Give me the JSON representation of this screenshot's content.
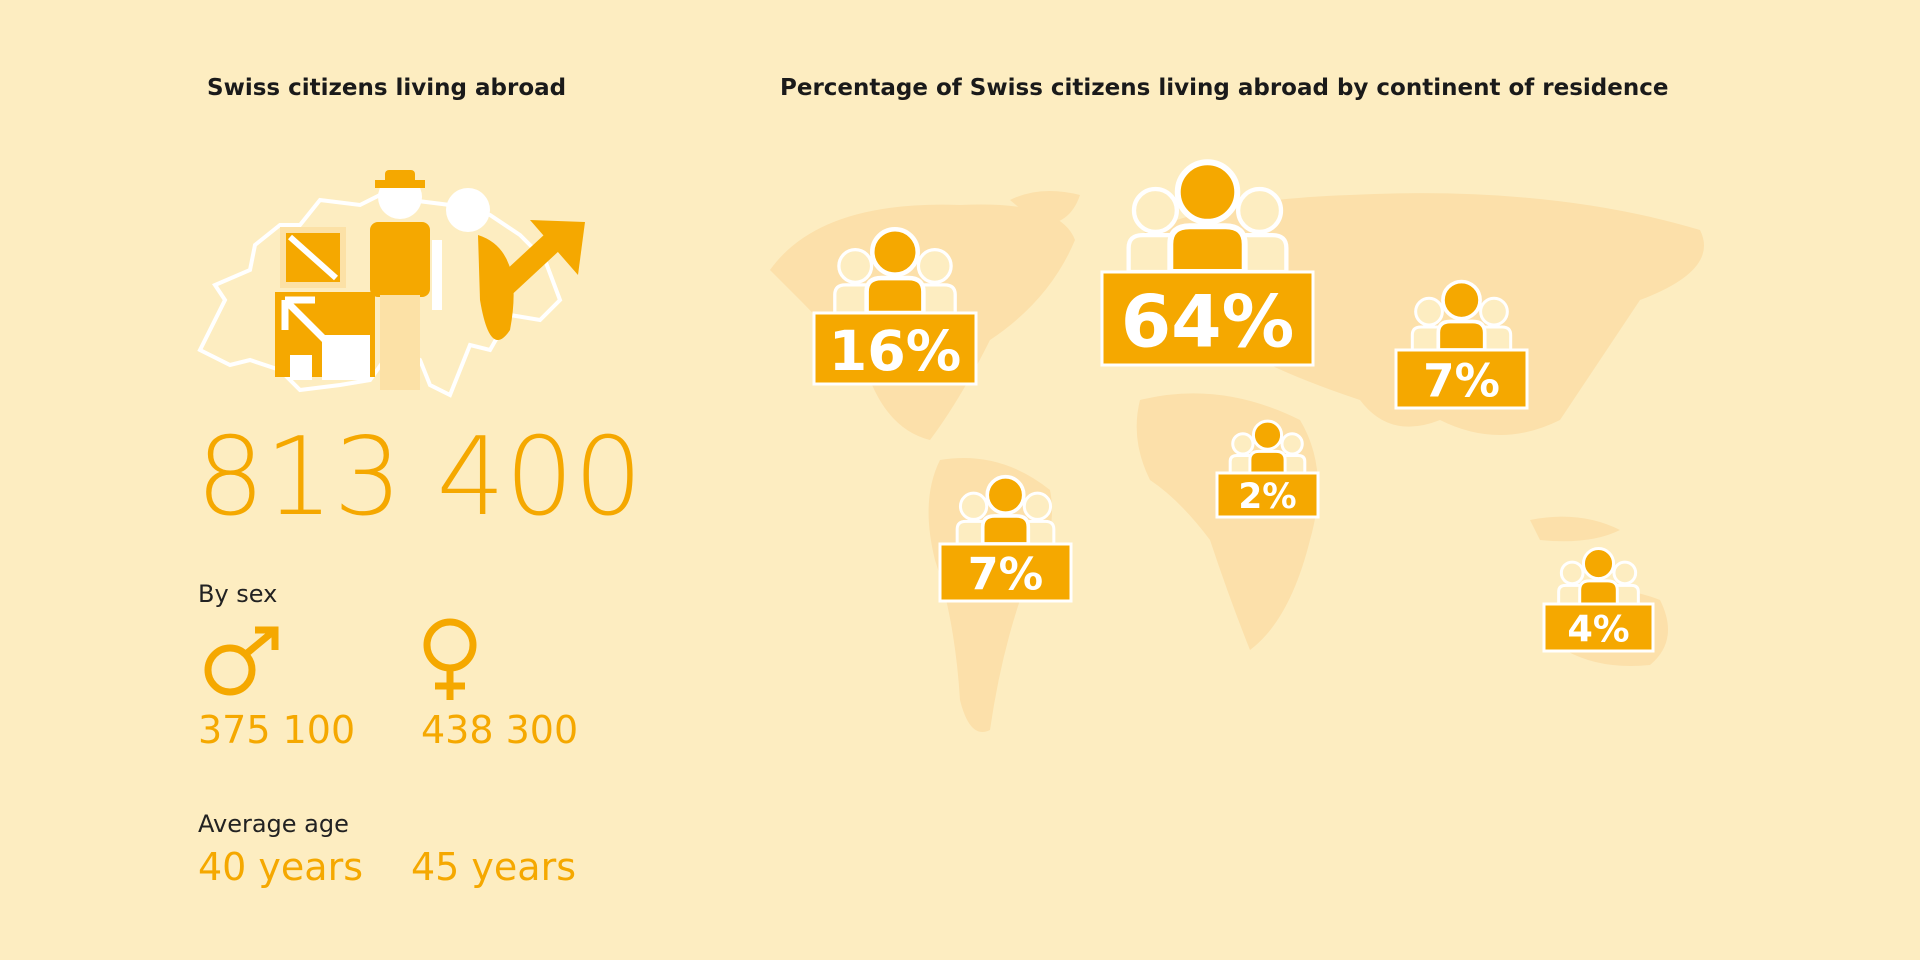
{
  "left": {
    "title": "Swiss citizens living abroad",
    "total": "813 400",
    "by_sex": {
      "label": "By sex",
      "male": "375 100",
      "female": "438 300"
    },
    "average_age": {
      "label": "Average age",
      "male": "40 years",
      "female": "45 years"
    }
  },
  "right": {
    "title": "Percentage of Swiss citizens living abroad by continent of residence",
    "regions": [
      "16%",
      "64%",
      "7%",
      "2%",
      "7%",
      "4%"
    ]
  }
}
